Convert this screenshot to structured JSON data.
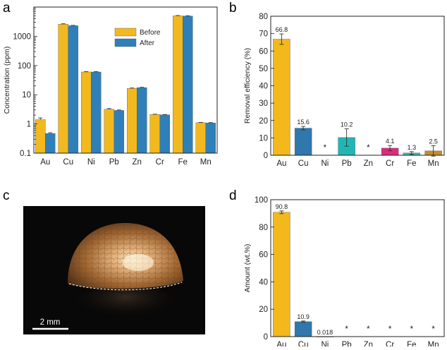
{
  "panels": {
    "a": "a",
    "b": "b",
    "c": "c",
    "d": "d"
  },
  "photo": {
    "scale_bar_label": "2 mm"
  },
  "colors": {
    "before": "#f2b91f",
    "after": "#2f7fb8",
    "Au": "#f3b81c",
    "Cu": "#2f77ad",
    "Ni": "#9b3fa6",
    "Pb": "#21b6b6",
    "Zn": "#2c6db2",
    "Cr": "#dc2b7c",
    "Fe": "#27c9a0",
    "Mn": "#c98a2c"
  },
  "chart_data": [
    {
      "panel": "a",
      "type": "bar",
      "ylabel": "Concentration (ppm)",
      "yscale": "log",
      "ylim": [
        0.1,
        10000
      ],
      "yticks": [
        0.1,
        1,
        10,
        100,
        1000
      ],
      "ytick_labels": [
        "0.1",
        "1",
        "10",
        "100",
        "1000"
      ],
      "categories": [
        "Au",
        "Cu",
        "Ni",
        "Pb",
        "Zn",
        "Cr",
        "Fe",
        "Mn"
      ],
      "legend": "top-right",
      "series": [
        {
          "name": "Before",
          "values": [
            1.4,
            2600,
            60,
            3.2,
            16.5,
            2.1,
            5000,
            1.1
          ],
          "errors": [
            0.2,
            80,
            2,
            0.15,
            0.5,
            0.05,
            150,
            0.03
          ]
        },
        {
          "name": "After",
          "values": [
            0.47,
            2300,
            60,
            2.9,
            17.5,
            2.05,
            4900,
            1.08
          ],
          "errors": [
            0.03,
            60,
            2,
            0.1,
            0.4,
            0.05,
            140,
            0.03
          ]
        }
      ]
    },
    {
      "panel": "b",
      "type": "bar",
      "ylabel": "Removal efficiency (%)",
      "ylim": [
        0,
        80
      ],
      "yticks": [
        0,
        10,
        20,
        30,
        40,
        50,
        60,
        70,
        80
      ],
      "categories": [
        "Au",
        "Cu",
        "Ni",
        "Pb",
        "Zn",
        "Cr",
        "Fe",
        "Mn"
      ],
      "values": [
        66.8,
        15.6,
        0,
        10.2,
        0,
        4.1,
        1.3,
        2.5
      ],
      "errors": [
        3.0,
        1.0,
        0,
        5.0,
        0,
        1.5,
        0.8,
        3.0
      ],
      "data_labels": [
        "66.8",
        "15.6",
        "*",
        "10.2",
        "*",
        "4.1",
        "1.3",
        "2.5"
      ]
    },
    {
      "panel": "d",
      "type": "bar",
      "ylabel": "Amount (wt.%)",
      "ylim": [
        0,
        100
      ],
      "yticks": [
        0,
        20,
        40,
        60,
        80,
        100
      ],
      "categories": [
        "Au",
        "Cu",
        "Ni",
        "Pb",
        "Zn",
        "Cr",
        "Fe",
        "Mn"
      ],
      "values": [
        90.8,
        10.9,
        0.018,
        0,
        0,
        0,
        0,
        0
      ],
      "errors": [
        1.0,
        0.5,
        0,
        0,
        0,
        0,
        0,
        0
      ],
      "data_labels": [
        "90.8",
        "10.9",
        "0.018",
        "*",
        "*",
        "*",
        "*",
        "*"
      ]
    }
  ]
}
